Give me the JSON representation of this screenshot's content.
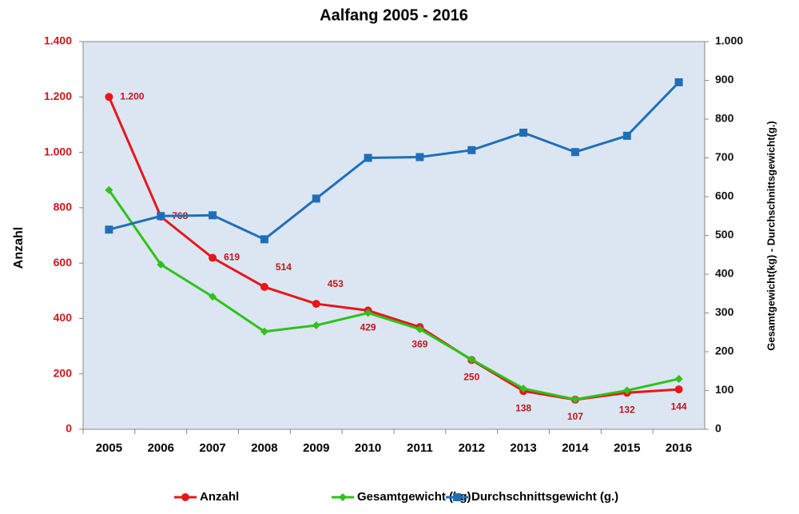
{
  "chart_data": {
    "type": "line",
    "title": "Aalfang 2005 - 2016",
    "categories": [
      "2005",
      "2006",
      "2007",
      "2008",
      "2009",
      "2010",
      "2011",
      "2012",
      "2013",
      "2014",
      "2015",
      "2016"
    ],
    "ylabel": "Anzahl",
    "y2label": "Gesamtgewicht(kg) - Durchschnittsgewicht(g.)",
    "ylim": [
      0,
      1400
    ],
    "yticks": [
      0,
      200,
      400,
      600,
      800,
      {
        "value": 1000,
        "label": "1.000"
      },
      {
        "value": 1200,
        "label": "1.200"
      },
      {
        "value": 1400,
        "label": "1.400"
      }
    ],
    "y2lim": [
      0,
      1000
    ],
    "y2ticks": [
      0,
      100,
      200,
      300,
      400,
      500,
      600,
      700,
      800,
      900,
      {
        "value": 1000,
        "label": "1.000"
      }
    ],
    "series": [
      {
        "name": "Anzahl",
        "color": "#e8161b",
        "marker": "circle",
        "values": [
          1200,
          768,
          619,
          514,
          453,
          429,
          369,
          250,
          138,
          107,
          132,
          144
        ],
        "value_labels": [
          "1.200",
          "768",
          "619",
          "514",
          "453",
          "429",
          "369",
          "250",
          "138",
          "107",
          "132",
          "144"
        ]
      },
      {
        "name": "Gesamtgewicht (kg)",
        "color": "#2ec21a",
        "marker": "diamond",
        "axis": "y2",
        "values": [
          617,
          425,
          342,
          252,
          268,
          300,
          258,
          180,
          105,
          77,
          100,
          130
        ]
      },
      {
        "name": "Durchschnittsgewicht (g.)",
        "color": "#1f6fb8",
        "marker": "square",
        "axis": "y2",
        "values": [
          515,
          550,
          552,
          490,
          595,
          700,
          702,
          720,
          765,
          715,
          757,
          895
        ]
      }
    ],
    "legend": "bottom"
  }
}
